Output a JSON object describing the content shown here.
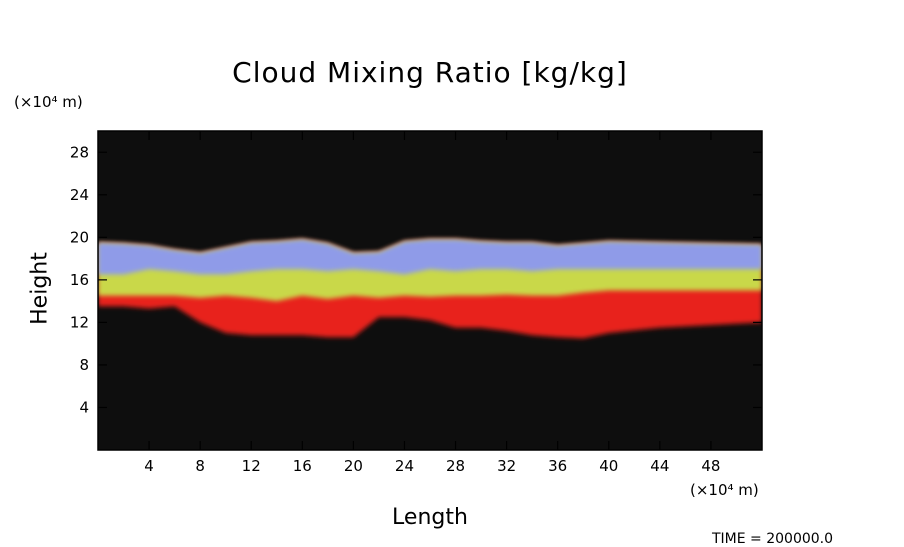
{
  "chart_data": {
    "type": "heatmap",
    "title": "Cloud Mixing Ratio [kg/kg]",
    "xlabel": "Length",
    "ylabel": "Height",
    "x_unit": "(×10⁴ m)",
    "y_unit": "(×10⁴ m)",
    "xlim": [
      0,
      52
    ],
    "ylim": [
      0,
      30
    ],
    "xticks": [
      4,
      8,
      12,
      16,
      20,
      24,
      28,
      32,
      36,
      40,
      44,
      48
    ],
    "yticks": [
      4,
      8,
      12,
      16,
      20,
      24,
      28
    ],
    "background_color": "#0e0e0e",
    "layers": [
      {
        "color": "#e8231c",
        "bottom": [
          13.5,
          13.5,
          13.3,
          13.5,
          12,
          11,
          10.8,
          10.8,
          10.8,
          10.6,
          10.6,
          12.5,
          12.5,
          12.2,
          11.5,
          11.5,
          11.2,
          10.8,
          10.6,
          10.5,
          11,
          11.5,
          12
        ]
      },
      {
        "color": "#c9d84a",
        "bottom": [
          14.5,
          14.5,
          14.5,
          14.5,
          14.3,
          14.5,
          14.3,
          14,
          14.5,
          14.2,
          14.5,
          14.3,
          14.5,
          14.4,
          14.5,
          14.5,
          14.6,
          14.5,
          14.5,
          14.8,
          15,
          15,
          15
        ]
      },
      {
        "color": "#8f9be8",
        "bottom": [
          16.5,
          16.5,
          17,
          16.8,
          16.5,
          16.5,
          16.8,
          17,
          17,
          16.8,
          17,
          16.8,
          16.5,
          17,
          16.8,
          17,
          17,
          16.8,
          17,
          17,
          17,
          17,
          17
        ]
      }
    ],
    "cloud_top": [
      19.5,
      19.4,
      19.2,
      18.8,
      18.5,
      19,
      19.5,
      19.6,
      19.8,
      19.4,
      18.5,
      18.6,
      19.6,
      19.8,
      19.8,
      19.6,
      19.5,
      19.5,
      19.2,
      19.4,
      19.6,
      19.5,
      19.3
    ],
    "profile_x": [
      0,
      2,
      4,
      6,
      8,
      10,
      12,
      14,
      16,
      18,
      20,
      22,
      24,
      26,
      28,
      30,
      32,
      34,
      36,
      38,
      40,
      44,
      52
    ],
    "cloud_xrange": [
      0,
      52
    ]
  },
  "time_label": "TIME = 200000.0"
}
